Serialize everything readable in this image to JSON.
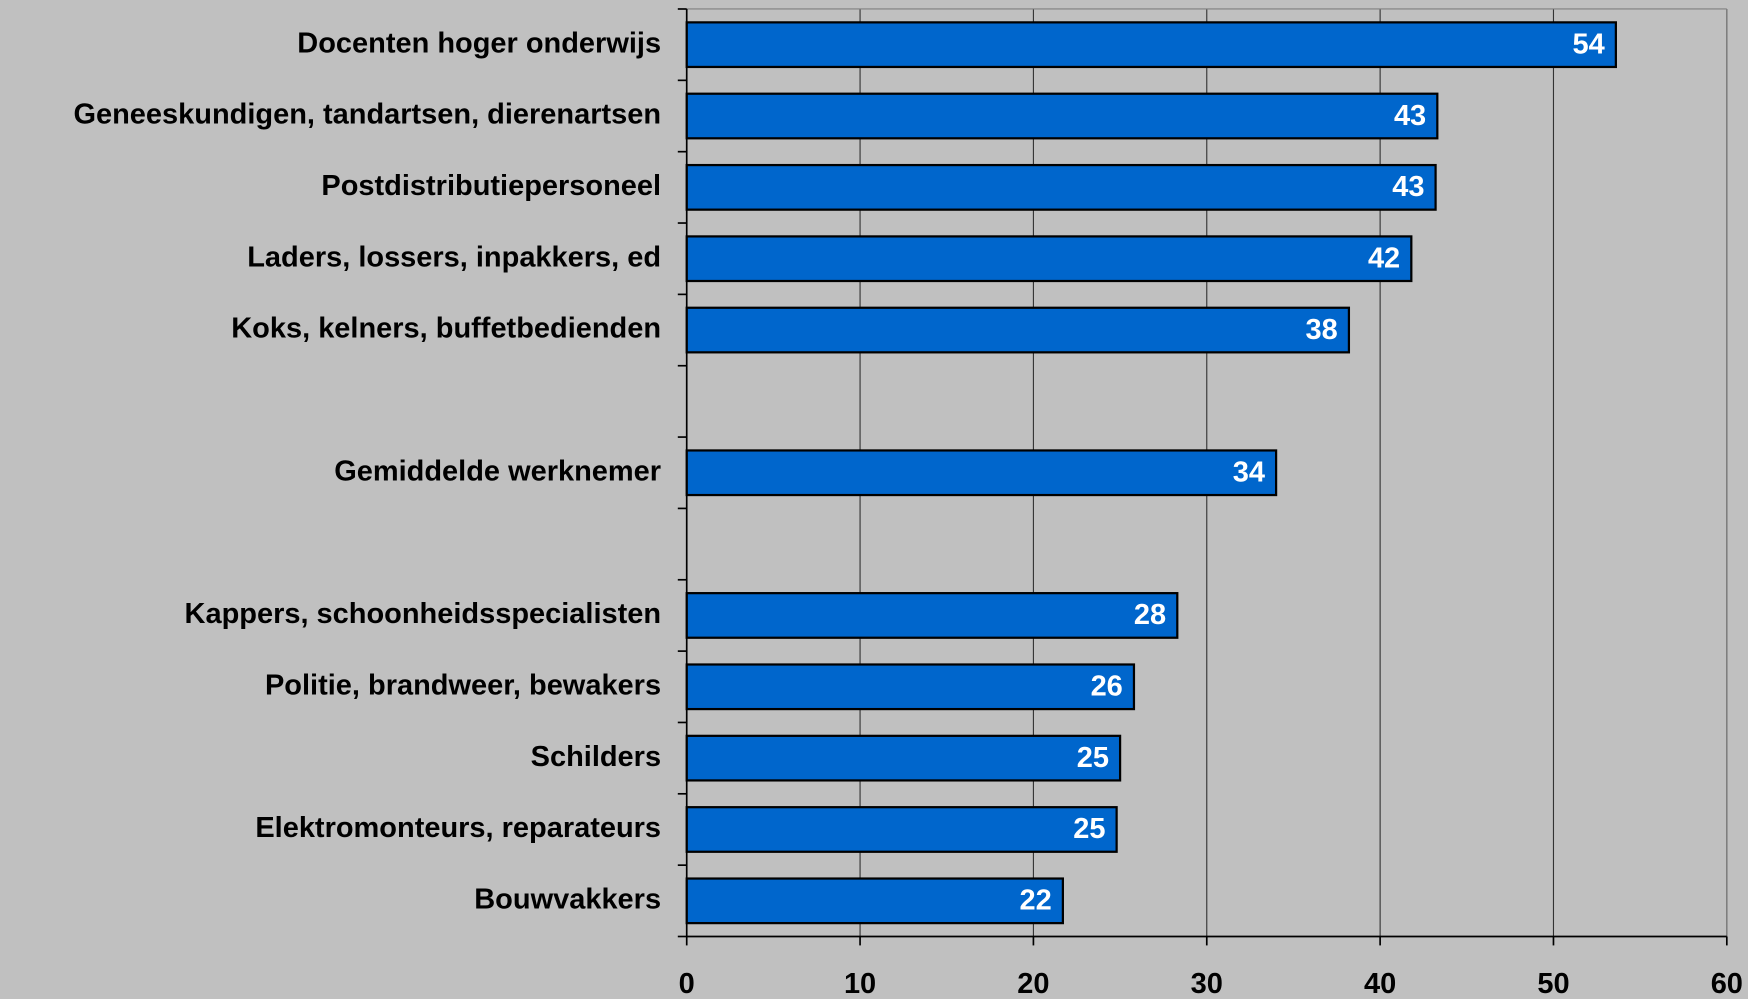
{
  "chart_data": {
    "type": "barh",
    "categories": [
      "Docenten hoger onderwijs",
      "Geneeskundigen, tandartsen, dierenartsen",
      "Postdistributiepersoneel",
      "Laders, lossers, inpakkers, ed",
      "Koks, kelners, buffetbedienden",
      null,
      "Gemiddelde werknemer",
      null,
      "Kappers, schoonheidsspecialisten",
      "Politie, brandweer, bewakers",
      "Schilders",
      "Elektromonteurs, reparateurs",
      "Bouwvakkers"
    ],
    "values": [
      53.6,
      43.3,
      43.2,
      41.8,
      38.2,
      null,
      34.0,
      null,
      28.3,
      25.8,
      25.0,
      24.8,
      21.7
    ],
    "value_labels": [
      "54",
      "43",
      "43",
      "42",
      "38",
      null,
      "34",
      null,
      "28",
      "26",
      "25",
      "25",
      "22"
    ],
    "color": "#0066cc",
    "xlim": [
      0,
      60
    ],
    "xticks": [
      0,
      10,
      20,
      30,
      40,
      50,
      60
    ],
    "grid": true
  }
}
